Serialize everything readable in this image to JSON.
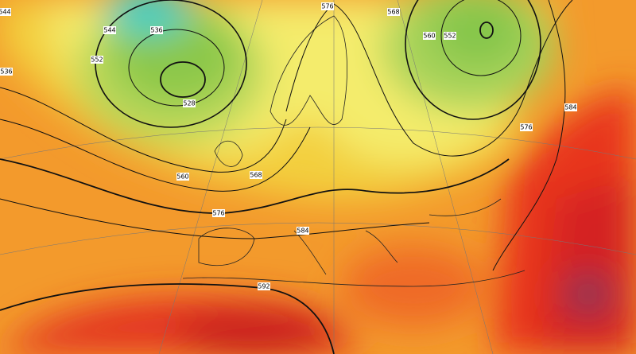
{
  "contour_labels": [
    "544",
    "536",
    "552",
    "528",
    "560",
    "568",
    "576",
    "576",
    "568",
    "560",
    "552",
    "576",
    "584",
    "584",
    "592",
    "536",
    "544"
  ]
}
